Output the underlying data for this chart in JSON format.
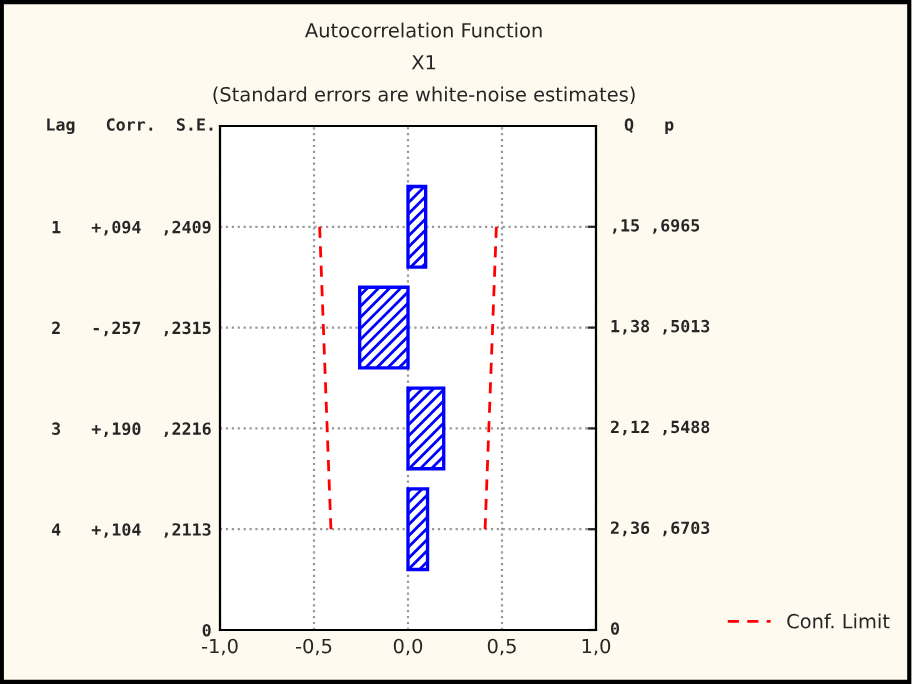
{
  "chart_data": {
    "type": "bar",
    "orientation": "horizontal",
    "title": "Autocorrelation Function",
    "subtitle": "X1",
    "categories": [
      "1   +,094  ,2409",
      "2   -,257  ,2315",
      "3   +,190  ,2216",
      "4   +,104  ,2113",
      "0"
    ],
    "series": [
      {
        "color": "#0000ff",
        "values": [
          0.094,
          -0.257,
          0.19,
          0.104,
          null
        ]
      },
      {
        "type": "line",
        "name": "Conf. Limit",
        "color": "#ff0000",
        "line_style": "dashed",
        "values": [
          0.47,
          0.45,
          0.43,
          0.41,
          null
        ]
      },
      {
        "type": "line",
        "color": "#ff0000",
        "line_style": "dashed",
        "values": [
          -0.47,
          -0.45,
          -0.43,
          -0.41,
          null
        ]
      }
    ],
    "xlim": [
      -1,
      1
    ],
    "xticks": [
      {
        "value": -1,
        "label": "-1,0"
      },
      {
        "value": -0.5,
        "label": "-0,5"
      },
      {
        "value": 0,
        "label": "0,0"
      },
      {
        "value": 0.5,
        "label": "0,5"
      },
      {
        "value": 1,
        "label": "1,0"
      }
    ],
    "grid": true,
    "legend": "bottom right",
    "marker": "none",
    "annotations": [
      "(Standard errors are white-noise estimates)",
      "Lag   Corr.  S.E.",
      "Q   p",
      ",15 ,6965",
      "1,38 ,5013",
      "2,12 ,5488",
      "2,36 ,6703",
      "0"
    ]
  }
}
